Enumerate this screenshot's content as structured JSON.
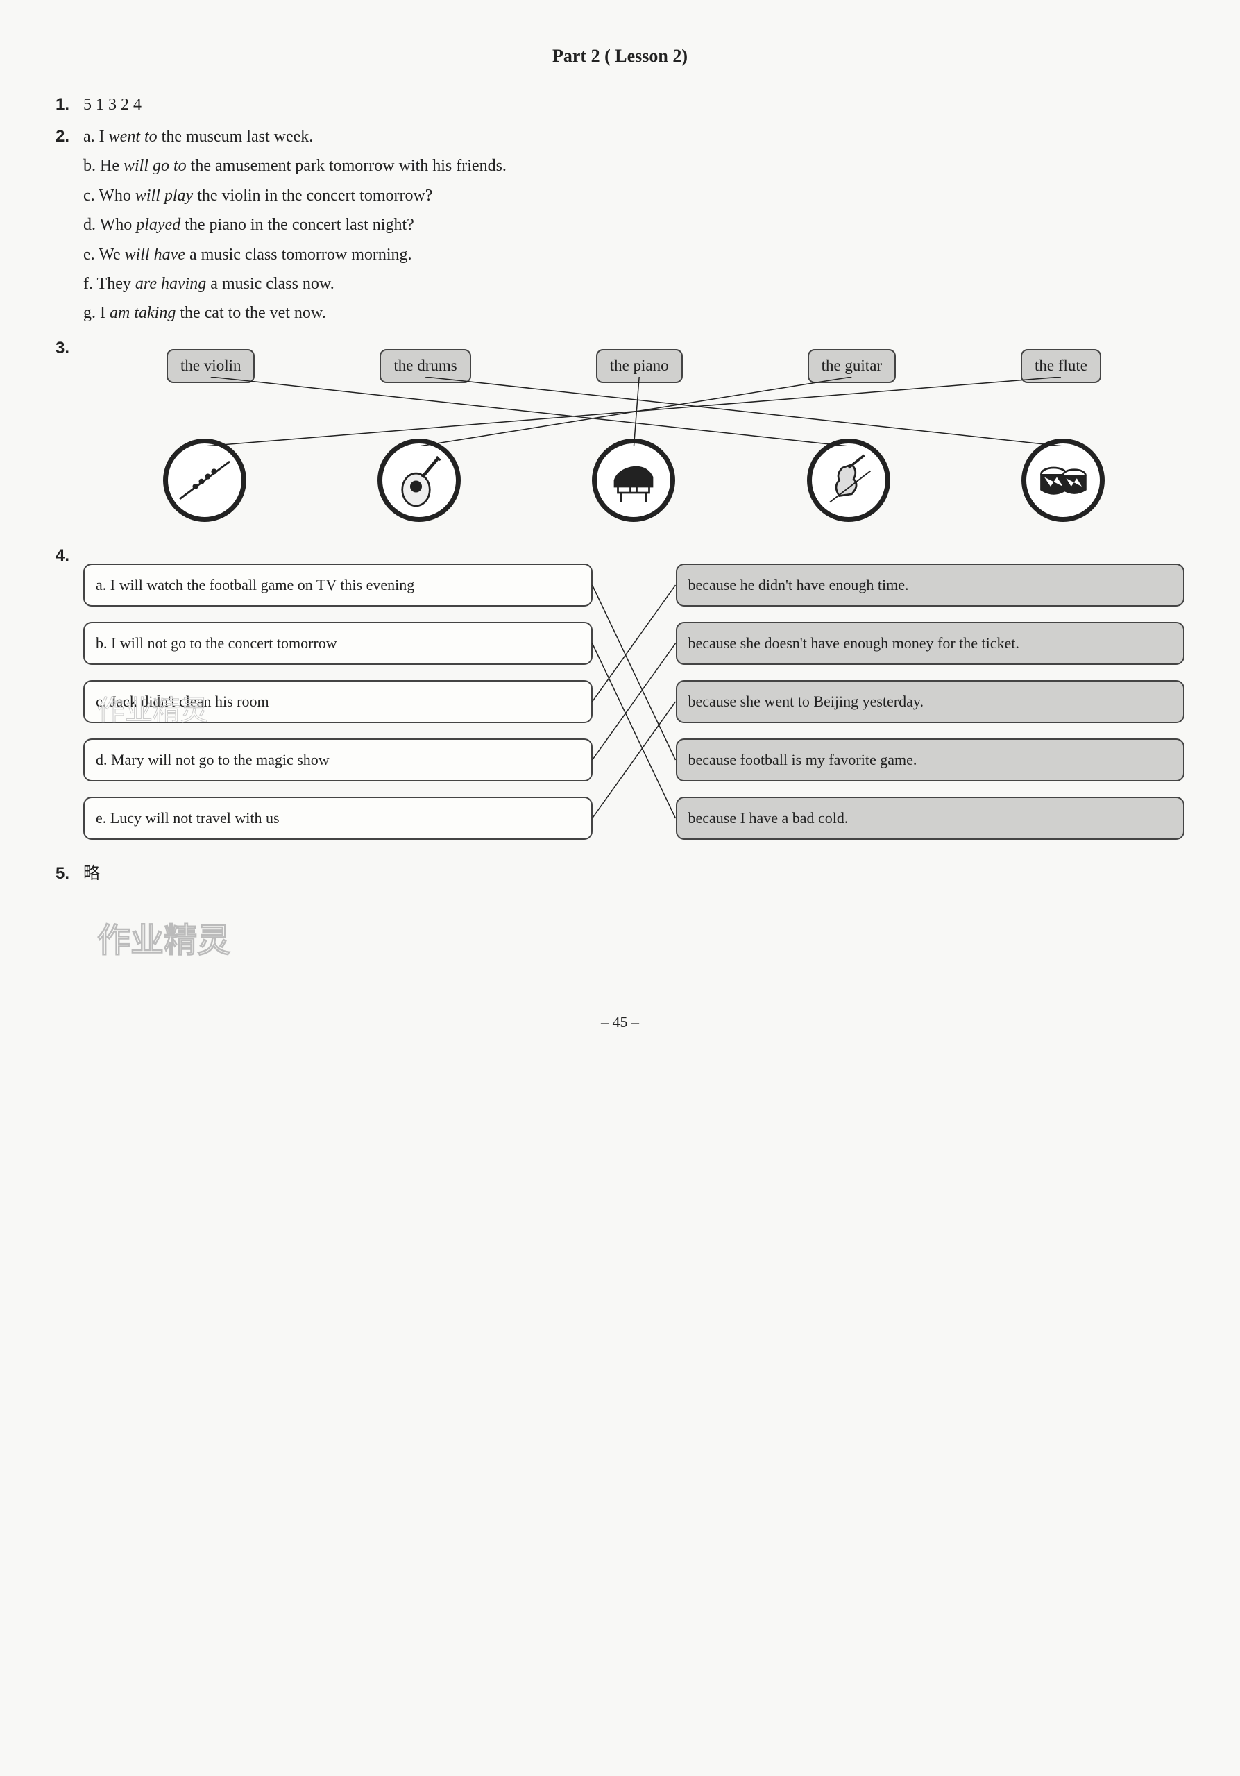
{
  "title": "Part 2 ( Lesson 2)",
  "q1": {
    "num": "1.",
    "answer": "5 1 3 2 4"
  },
  "q2": {
    "num": "2.",
    "lines": [
      {
        "prefix": "a. I ",
        "italic": "went to",
        "suffix": " the museum last week."
      },
      {
        "prefix": "b. He ",
        "italic": "will go to",
        "suffix": " the amusement park tomorrow with his friends."
      },
      {
        "prefix": "c. Who ",
        "italic": "will play",
        "suffix": " the violin in the concert tomorrow?"
      },
      {
        "prefix": "d. Who ",
        "italic": "played",
        "suffix": " the piano in the concert last night?"
      },
      {
        "prefix": "e. We ",
        "italic": "will have",
        "suffix": " a music class tomorrow morning."
      },
      {
        "prefix": "f. They ",
        "italic": "are having",
        "suffix": " a music class now."
      },
      {
        "prefix": "g. I ",
        "italic": "am taking",
        "suffix": " the cat to the vet now."
      }
    ]
  },
  "q3": {
    "num": "3.",
    "labels": [
      "the violin",
      "the drums",
      "the piano",
      "the guitar",
      "the flute"
    ],
    "icons": [
      "flute",
      "guitar",
      "piano",
      "violin",
      "drums"
    ],
    "connections": [
      {
        "from": 0,
        "to": 3
      },
      {
        "from": 1,
        "to": 4
      },
      {
        "from": 2,
        "to": 2
      },
      {
        "from": 3,
        "to": 1
      },
      {
        "from": 4,
        "to": 0
      }
    ]
  },
  "q4": {
    "num": "4.",
    "left": [
      "a. I will watch the football game on TV this evening",
      "b. I will not go to the concert tomorrow",
      "c. Jack didn't clean his room",
      "d. Mary will not go to the magic show",
      "e. Lucy will not travel with us"
    ],
    "right": [
      "because he didn't have enough time.",
      "because she doesn't have enough money for the ticket.",
      "because she went to Beijing yesterday.",
      "because football is my favorite game.",
      "because I have a bad cold."
    ],
    "connections": [
      {
        "from": 0,
        "to": 3
      },
      {
        "from": 1,
        "to": 4
      },
      {
        "from": 2,
        "to": 0
      },
      {
        "from": 3,
        "to": 1
      },
      {
        "from": 4,
        "to": 2
      }
    ]
  },
  "q5": {
    "num": "5.",
    "answer": "略"
  },
  "watermark": "作业精灵",
  "pageNumber": "– 45 –",
  "colors": {
    "labelBg": "#d0d0ce",
    "border": "#444444",
    "line": "#222222"
  }
}
